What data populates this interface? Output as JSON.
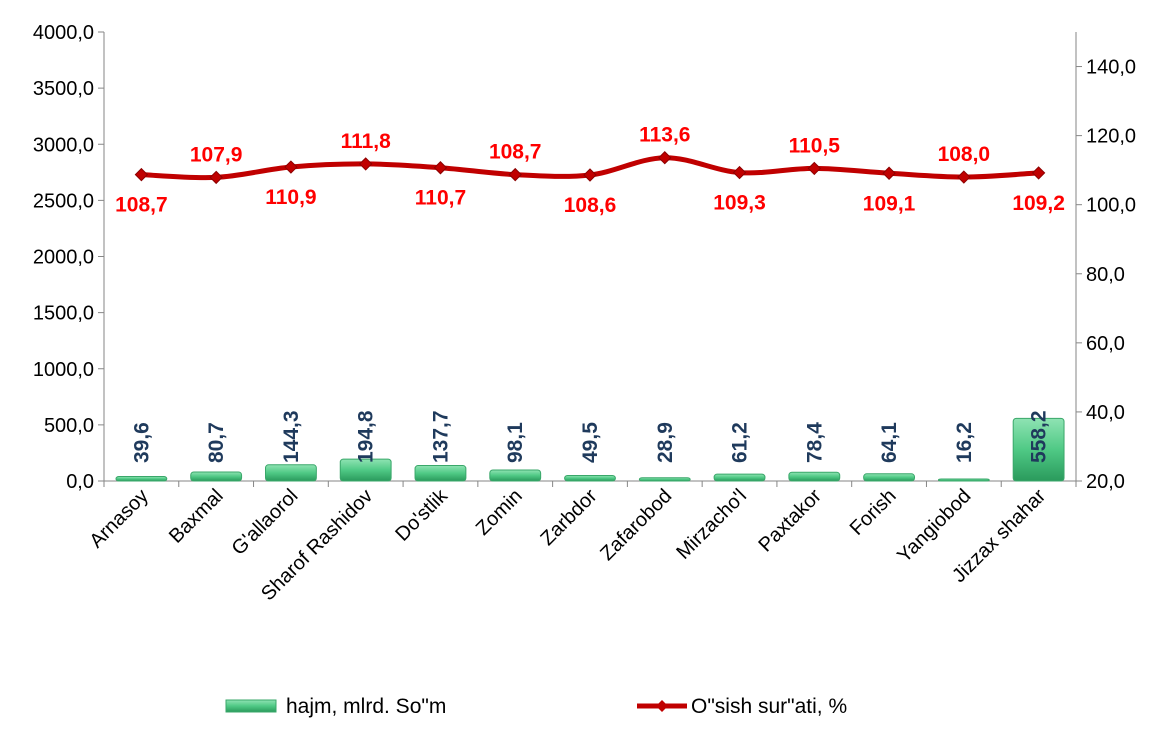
{
  "chart_data": {
    "type": "bar",
    "categories": [
      "Arnasoy",
      "Baxmal",
      "G'allaorol",
      "Sharof Rashidov",
      "Do'stlik",
      "Zomin",
      "Zarbdor",
      "Zafarobod",
      "Mirzacho'l",
      "Paxtakor",
      "Forish",
      "Yangiobod",
      "Jizzax shahar"
    ],
    "series": [
      {
        "name": "hajm, mlrd. So\"m",
        "type": "bar",
        "axis": "left",
        "values": [
          39.6,
          80.7,
          144.3,
          194.8,
          137.7,
          98.1,
          49.5,
          28.9,
          61.2,
          78.4,
          64.1,
          16.2,
          558.2
        ],
        "labels": [
          "39,6",
          "80,7",
          "144,3",
          "194,8",
          "137,7",
          "98,1",
          "49,5",
          "28,9",
          "61,2",
          "78,4",
          "64,1",
          "16,2",
          "558,2"
        ],
        "color": "#5fd08f"
      },
      {
        "name": "O\"sish sur\"ati, %",
        "type": "line",
        "axis": "right",
        "values": [
          108.7,
          107.9,
          110.9,
          111.8,
          110.7,
          108.7,
          108.6,
          113.6,
          109.3,
          110.5,
          109.1,
          108.0,
          109.2
        ],
        "labels": [
          "108,7",
          "107,9",
          "110,9",
          "111,8",
          "110,7",
          "108,7",
          "108,6",
          "113,6",
          "109,3",
          "110,5",
          "109,1",
          "108,0",
          "109,2"
        ],
        "color": "#c00000"
      }
    ],
    "y_left": {
      "ylim": [
        0,
        4000
      ],
      "ticks": [
        0,
        500,
        1000,
        1500,
        2000,
        2500,
        3000,
        3500,
        4000
      ],
      "tick_labels": [
        "0,0",
        "500,0",
        "1000,0",
        "1500,0",
        "2000,0",
        "2500,0",
        "3000,0",
        "3500,0",
        "4000,0"
      ]
    },
    "y_right": {
      "ylim": [
        20,
        150
      ],
      "ticks": [
        20,
        40,
        60,
        80,
        100,
        120,
        140
      ],
      "tick_labels": [
        "20,0",
        "40,0",
        "60,0",
        "80,0",
        "100,0",
        "120,0",
        "140,0"
      ]
    },
    "grid": false,
    "legend": "bottom",
    "title": "",
    "xlabel": "",
    "ylabel": ""
  }
}
